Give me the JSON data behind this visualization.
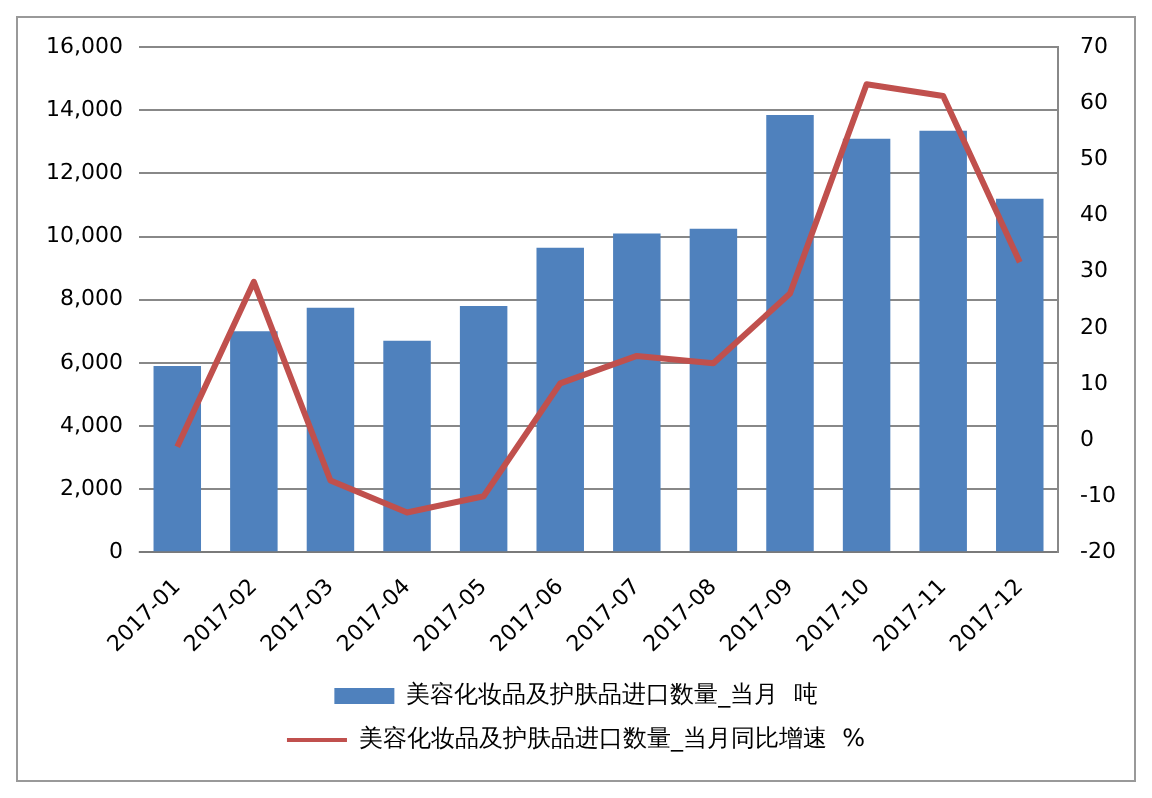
{
  "chart_data": {
    "type": "bar",
    "categories": [
      "2017-01",
      "2017-02",
      "2017-03",
      "2017-04",
      "2017-05",
      "2017-06",
      "2017-07",
      "2017-08",
      "2017-09",
      "2017-10",
      "2017-11",
      "2017-12"
    ],
    "series": [
      {
        "name": "美容化妆品及护肤品进口数量_当月  吨",
        "color": "#4f81bd",
        "values": [
          5900,
          7000,
          7750,
          6700,
          7800,
          9650,
          10100,
          10250,
          13850,
          13100,
          13350,
          11200
        ]
      },
      {
        "name": "美容化妆品及护肤品进口数量_当月同比增速  %",
        "type": "line",
        "axis": "y2",
        "color": "#c0504d",
        "values": [
          -1.2,
          28.2,
          -7.2,
          -12.9,
          -10,
          10.1,
          15,
          13.7,
          26.1,
          63.4,
          61.3,
          31.7
        ]
      }
    ],
    "ylim": [
      0,
      16000
    ],
    "yticks": [
      {
        "value": 0,
        "label": "0"
      },
      {
        "value": 2000,
        "label": "2,000"
      },
      {
        "value": 4000,
        "label": "4,000"
      },
      {
        "value": 6000,
        "label": "6,000"
      },
      {
        "value": 8000,
        "label": "8,000"
      },
      {
        "value": 10000,
        "label": "10,000"
      },
      {
        "value": 12000,
        "label": "12,000"
      },
      {
        "value": 14000,
        "label": "14,000"
      },
      {
        "value": 16000,
        "label": "16,000"
      }
    ],
    "y2lim": [
      -20,
      70
    ],
    "y2ticks": [
      -20,
      -10,
      0,
      10,
      20,
      30,
      40,
      50,
      60,
      70
    ],
    "grid": "y",
    "legend": "bottom",
    "marker": "none",
    "line_style": "solid"
  }
}
